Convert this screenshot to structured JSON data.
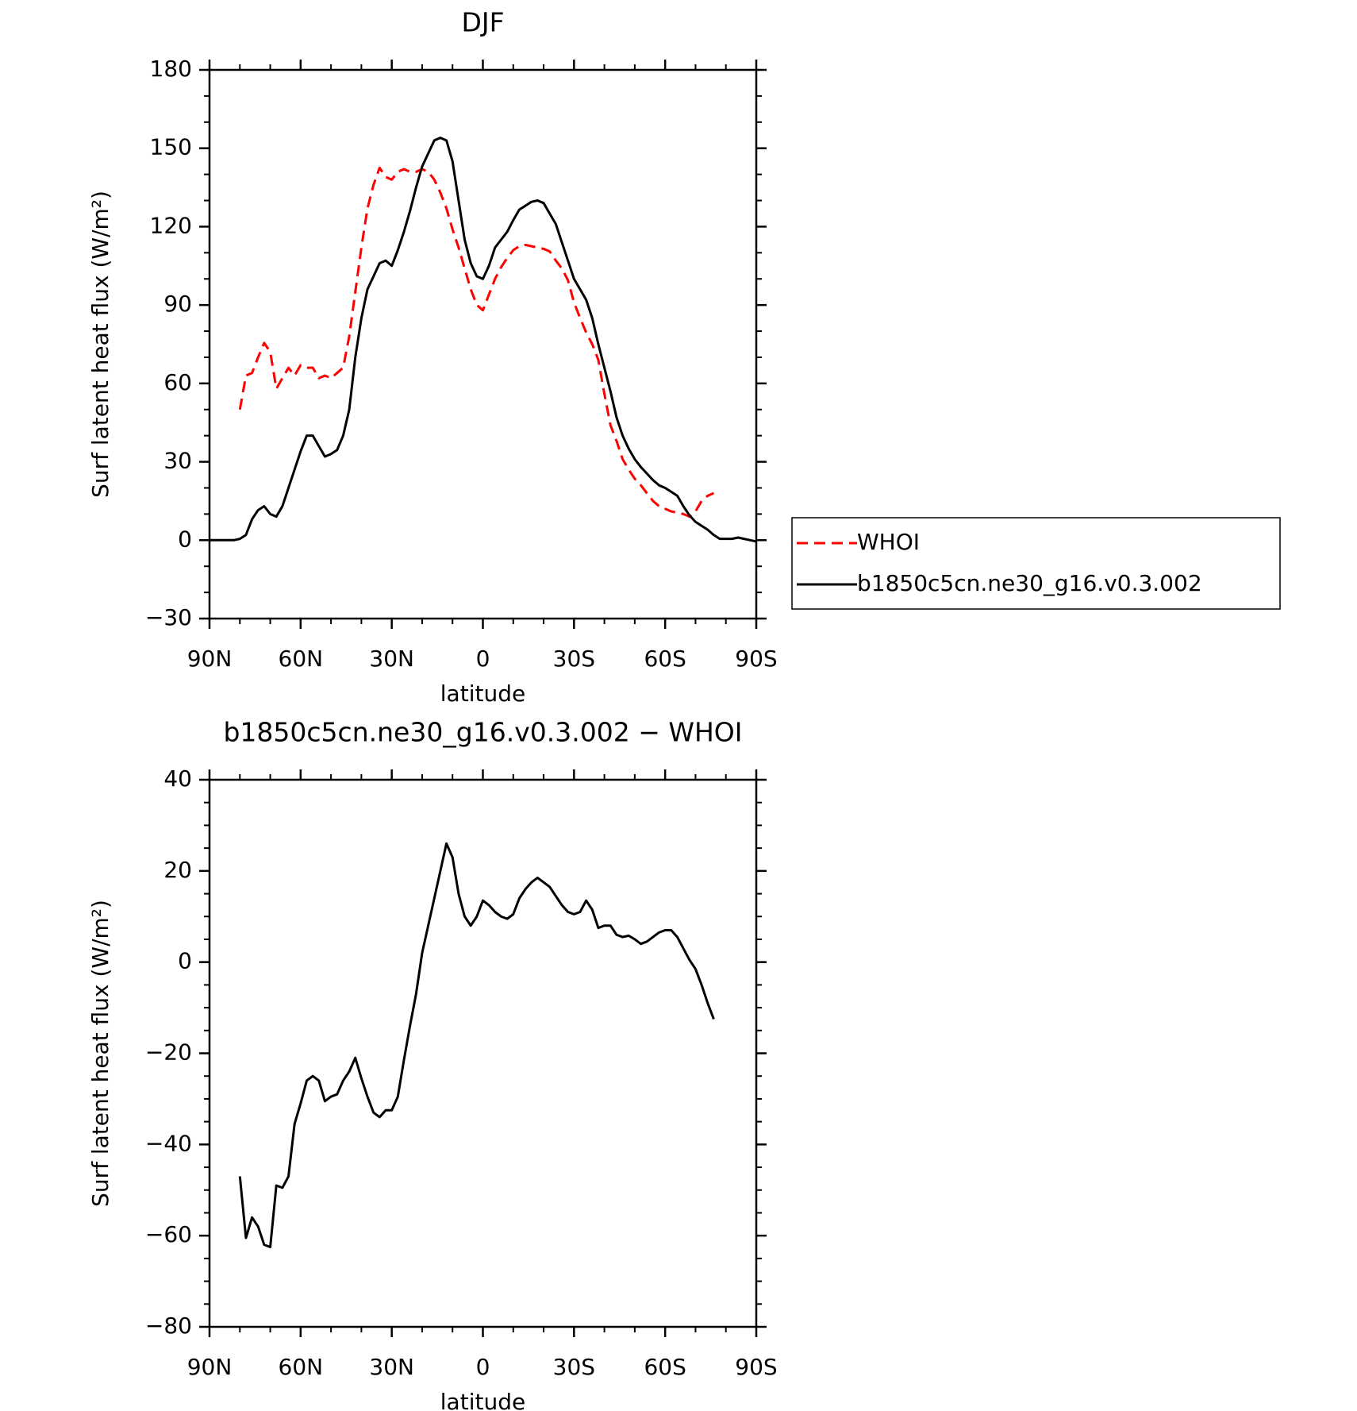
{
  "chart_data": [
    {
      "type": "line",
      "title": "DJF",
      "xlabel": "latitude",
      "ylabel": "Surf latent heat flux (W/m²)",
      "x": [
        90,
        88,
        86,
        84,
        82,
        80,
        78,
        76,
        74,
        72,
        70,
        68,
        66,
        64,
        62,
        60,
        58,
        56,
        54,
        52,
        50,
        48,
        46,
        44,
        42,
        40,
        38,
        36,
        34,
        32,
        30,
        28,
        26,
        24,
        22,
        20,
        18,
        16,
        14,
        12,
        10,
        8,
        6,
        4,
        2,
        0,
        -2,
        -4,
        -6,
        -8,
        -10,
        -12,
        -14,
        -16,
        -18,
        -20,
        -22,
        -24,
        -26,
        -28,
        -30,
        -32,
        -34,
        -36,
        -38,
        -40,
        -42,
        -44,
        -46,
        -48,
        -50,
        -52,
        -54,
        -56,
        -58,
        -60,
        -62,
        -64,
        -66,
        -68,
        -70,
        -72,
        -74,
        -76,
        -78,
        -80,
        -82,
        -84,
        -86,
        -88,
        -90
      ],
      "series": [
        {
          "name": "WHOI",
          "color": "#ff0000",
          "linestyle": "dashed",
          "values": [
            null,
            null,
            null,
            null,
            null,
            50,
            63,
            64,
            70,
            75.5,
            72,
            58,
            62,
            66,
            63,
            67,
            66,
            66,
            62,
            63,
            62,
            64,
            66,
            78,
            95,
            112,
            127,
            136,
            142.5,
            139,
            138,
            141,
            142,
            141,
            141,
            142,
            141,
            138,
            133,
            127,
            119,
            112,
            104,
            96,
            90,
            88,
            94,
            100,
            104.5,
            108,
            111,
            112.5,
            113,
            112.5,
            112,
            111.5,
            110.5,
            107,
            104,
            99.5,
            91,
            85,
            79.5,
            75,
            69,
            56,
            44,
            38,
            31,
            27,
            23.5,
            21,
            18,
            15,
            13,
            12,
            11,
            10.5,
            10,
            9,
            11,
            15,
            17,
            18,
            null,
            null,
            null,
            null,
            null,
            null,
            null
          ]
        },
        {
          "name": "b1850c5cn.ne30_g16.v0.3.002",
          "color": "#000000",
          "linestyle": "solid",
          "values": [
            0,
            0,
            0,
            0,
            0,
            0.5,
            2,
            8,
            11.5,
            13,
            10,
            9,
            13,
            20,
            27,
            34,
            40,
            40,
            36,
            32,
            33,
            34.5,
            40,
            50,
            70,
            85,
            96,
            101,
            106,
            107,
            105,
            111,
            118,
            126,
            135,
            143,
            148,
            153,
            154,
            153,
            145,
            130,
            115,
            106,
            101,
            100,
            105,
            112,
            115,
            118,
            122.5,
            126.5,
            128,
            129.5,
            130,
            129,
            125,
            121,
            114,
            107,
            100,
            96,
            92,
            85,
            75,
            66,
            57,
            47,
            40,
            35,
            31,
            28,
            25.5,
            23,
            21,
            20,
            18.5,
            17,
            13,
            9.5,
            7,
            5.5,
            4,
            2,
            0.5,
            0.5,
            0.5,
            1,
            0.5,
            0,
            -0.5
          ]
        }
      ],
      "xlim": [
        90,
        -90
      ],
      "xticks": [
        {
          "value": 90,
          "label": "90N"
        },
        {
          "value": 60,
          "label": "60N"
        },
        {
          "value": 30,
          "label": "30N"
        },
        0,
        {
          "value": -30,
          "label": "30S"
        },
        {
          "value": -60,
          "label": "60S"
        },
        {
          "value": -90,
          "label": "90S"
        }
      ],
      "xminorticks": [
        80,
        70,
        50,
        40,
        20,
        10,
        -10,
        -20,
        -40,
        -50,
        -70,
        -80
      ],
      "ylim": [
        -30,
        180
      ],
      "yticks": [
        {
          "value": -30,
          "label": "−30"
        },
        0,
        30,
        60,
        90,
        120,
        150,
        180
      ],
      "yminorticks": [
        -20,
        -10,
        10,
        20,
        40,
        50,
        70,
        80,
        100,
        110,
        130,
        140,
        160,
        170
      ],
      "legend": "right"
    },
    {
      "type": "line",
      "title": "b1850c5cn.ne30_g16.v0.3.002 − WHOI",
      "xlabel": "latitude",
      "ylabel": "Surf latent heat flux (W/m²)",
      "x": [
        90,
        88,
        86,
        84,
        82,
        80,
        78,
        76,
        74,
        72,
        70,
        68,
        66,
        64,
        62,
        60,
        58,
        56,
        54,
        52,
        50,
        48,
        46,
        44,
        42,
        40,
        38,
        36,
        34,
        32,
        30,
        28,
        26,
        24,
        22,
        20,
        18,
        16,
        14,
        12,
        10,
        8,
        6,
        4,
        2,
        0,
        -2,
        -4,
        -6,
        -8,
        -10,
        -12,
        -14,
        -16,
        -18,
        -20,
        -22,
        -24,
        -26,
        -28,
        -30,
        -32,
        -34,
        -36,
        -38,
        -40,
        -42,
        -44,
        -46,
        -48,
        -50,
        -52,
        -54,
        -56,
        -58,
        -60,
        -62,
        -64,
        -66,
        -68,
        -70,
        -72,
        -74,
        -76,
        -78,
        -80,
        -82,
        -84,
        -86,
        -88,
        -90
      ],
      "series": [
        {
          "color": "#000000",
          "linestyle": "solid",
          "values": [
            null,
            null,
            null,
            null,
            null,
            -47,
            -60.5,
            -56,
            -58,
            -62,
            -62.5,
            -49,
            -49.5,
            -47,
            -35.5,
            -31,
            -26,
            -25,
            -26,
            -30.5,
            -29.5,
            -29,
            -26,
            -24,
            -21,
            -25.5,
            -29.5,
            -33,
            -34,
            -32.5,
            -32.5,
            -29.5,
            -21.5,
            -14,
            -7,
            2,
            8,
            14,
            20,
            26,
            23,
            15,
            10,
            8,
            10,
            13.5,
            12.5,
            11,
            10,
            9.5,
            10.5,
            14,
            16,
            17.5,
            18.5,
            17.5,
            16.5,
            14.5,
            12.5,
            11,
            10.5,
            11,
            13.5,
            11.5,
            7.5,
            8,
            8,
            6,
            5.5,
            5.8,
            5,
            4,
            4.5,
            5.5,
            6.5,
            7,
            7,
            5.5,
            3,
            0.5,
            -1.5,
            -5,
            -9,
            -12.5,
            null,
            null,
            null,
            null,
            null,
            null,
            null
          ]
        }
      ],
      "xlim": [
        90,
        -90
      ],
      "xticks": [
        {
          "value": 90,
          "label": "90N"
        },
        {
          "value": 60,
          "label": "60N"
        },
        {
          "value": 30,
          "label": "30N"
        },
        0,
        {
          "value": -30,
          "label": "30S"
        },
        {
          "value": -60,
          "label": "60S"
        },
        {
          "value": -90,
          "label": "90S"
        }
      ],
      "xminorticks": [
        80,
        70,
        50,
        40,
        20,
        10,
        -10,
        -20,
        -40,
        -50,
        -70,
        -80
      ],
      "ylim": [
        -80,
        40
      ],
      "yticks": [
        {
          "value": -80,
          "label": "−80"
        },
        {
          "value": -60,
          "label": "−60"
        },
        {
          "value": -40,
          "label": "−40"
        },
        {
          "value": -20,
          "label": "−20"
        },
        0,
        20,
        40
      ],
      "yminorticks": [
        35,
        30,
        25,
        15,
        10,
        5,
        -5,
        -10,
        -15,
        -25,
        -30,
        -35,
        -45,
        -50,
        -55,
        -65,
        -70,
        -75
      ]
    }
  ]
}
